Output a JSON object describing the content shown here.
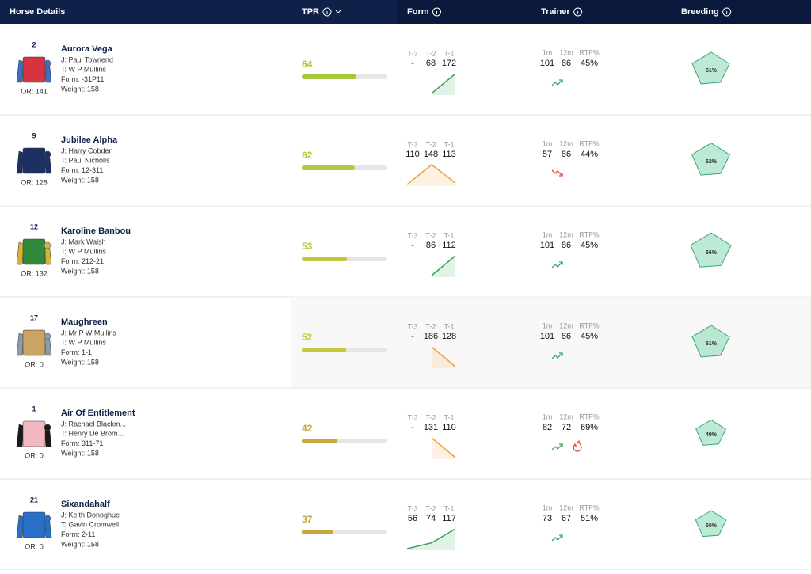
{
  "header": {
    "columns": [
      "Horse Details",
      "TPR",
      "Form",
      "Trainer",
      "Breeding"
    ]
  },
  "form_labels": [
    "T-3",
    "T-2",
    "T-1"
  ],
  "trainer_labels": [
    "1m",
    "12m",
    "RTF%"
  ],
  "rows": [
    {
      "number": "2",
      "name": "Aurora Vega",
      "jockey": "J: Paul Townend",
      "trainer": "T: W P Mullins",
      "form": "Form: -31P11",
      "or": "OR: 141",
      "weight": "Weight: 158",
      "tpr": 64,
      "tpr_color": "#a8c63a",
      "form_values": [
        "-",
        "68",
        "172"
      ],
      "trainer_stats": [
        "101",
        "86",
        "45%"
      ],
      "trend": "up",
      "breeding": "61%",
      "silk": [
        "#d8343f",
        "#3d6fc0"
      ]
    },
    {
      "number": "9",
      "name": "Jubilee Alpha",
      "jockey": "J: Harry Cobden",
      "trainer": "T: Paul Nicholls",
      "form": "Form: 12-311",
      "or": "OR: 128",
      "weight": "Weight: 158",
      "tpr": 62,
      "tpr_color": "#b3c83a",
      "form_values": [
        "110",
        "148",
        "113"
      ],
      "trainer_stats": [
        "57",
        "86",
        "44%"
      ],
      "trend": "down",
      "breeding": "62%",
      "silk": [
        "#1d2f63",
        "#1d2f63"
      ]
    },
    {
      "number": "12",
      "name": "Karoline Banbou",
      "jockey": "J: Mark Walsh",
      "trainer": "T: W P Mullins",
      "form": "Form: 212-21",
      "or": "OR: 132",
      "weight": "Weight: 158",
      "tpr": 53,
      "tpr_color": "#c2c83c",
      "form_values": [
        "-",
        "86",
        "112"
      ],
      "trainer_stats": [
        "101",
        "86",
        "45%"
      ],
      "trend": "up",
      "breeding": "66%",
      "silk": [
        "#2f8a3b",
        "#d9b233"
      ]
    },
    {
      "number": "17",
      "name": "Maughreen",
      "jockey": "J: Mr P W Mullins",
      "trainer": "T: W P Mullins",
      "form": "Form: 1-1",
      "or": "OR: 0",
      "weight": "Weight: 158",
      "tpr": 52,
      "tpr_color": "#c5c63c",
      "form_values": [
        "-",
        "186",
        "128"
      ],
      "trainer_stats": [
        "101",
        "86",
        "45%"
      ],
      "trend": "up",
      "breeding": "61%",
      "silk": [
        "#c9a463",
        "#8a9bb0"
      ]
    },
    {
      "number": "1",
      "name": "Air Of Entitlement",
      "jockey": "J: Rachael Blackm...",
      "trainer": "T: Henry De Brom...",
      "form": "Form: 311-71",
      "or": "OR: 0",
      "weight": "Weight: 158",
      "tpr": 42,
      "tpr_color": "#c9a83a",
      "form_values": [
        "-",
        "131",
        "110"
      ],
      "trainer_stats": [
        "82",
        "72",
        "69%"
      ],
      "trend": "up",
      "hot": true,
      "breeding": "49%",
      "silk": [
        "#f2b9c2",
        "#1a1a1a"
      ]
    },
    {
      "number": "21",
      "name": "Sixandahalf",
      "jockey": "J: Keith Donoghue",
      "trainer": "T: Gavin Cromwell",
      "form": "Form: 2-11",
      "or": "OR: 0",
      "weight": "Weight: 158",
      "tpr": 37,
      "tpr_color": "#c9a43a",
      "form_values": [
        "56",
        "74",
        "117"
      ],
      "trainer_stats": [
        "73",
        "67",
        "51%"
      ],
      "trend": "up",
      "breeding": "50%",
      "silk": [
        "#2a6fc7",
        "#2a6fc7"
      ]
    }
  ]
}
